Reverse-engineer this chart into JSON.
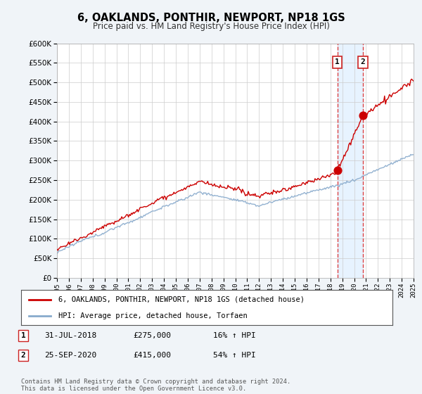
{
  "title": "6, OAKLANDS, PONTHIR, NEWPORT, NP18 1GS",
  "subtitle": "Price paid vs. HM Land Registry's House Price Index (HPI)",
  "legend_label_red": "6, OAKLANDS, PONTHIR, NEWPORT, NP18 1GS (detached house)",
  "legend_label_blue": "HPI: Average price, detached house, Torfaen",
  "annotation1_date": "31-JUL-2018",
  "annotation1_price": "£275,000",
  "annotation1_hpi": "16% ↑ HPI",
  "annotation2_date": "25-SEP-2020",
  "annotation2_price": "£415,000",
  "annotation2_hpi": "54% ↑ HPI",
  "footer": "Contains HM Land Registry data © Crown copyright and database right 2024.\nThis data is licensed under the Open Government Licence v3.0.",
  "ylim": [
    0,
    600000
  ],
  "yticks": [
    0,
    50000,
    100000,
    150000,
    200000,
    250000,
    300000,
    350000,
    400000,
    450000,
    500000,
    550000,
    600000
  ],
  "background_color": "#f0f4f8",
  "plot_bg_color": "#ffffff",
  "red_color": "#cc0000",
  "blue_color": "#88aacc",
  "vline_color": "#dd4444",
  "shade_color": "#ddeeff",
  "sale1_x": 2018.58,
  "sale2_x": 2020.74,
  "sale1_y": 275000,
  "sale2_y": 415000,
  "xmin": 1995,
  "xmax": 2025
}
